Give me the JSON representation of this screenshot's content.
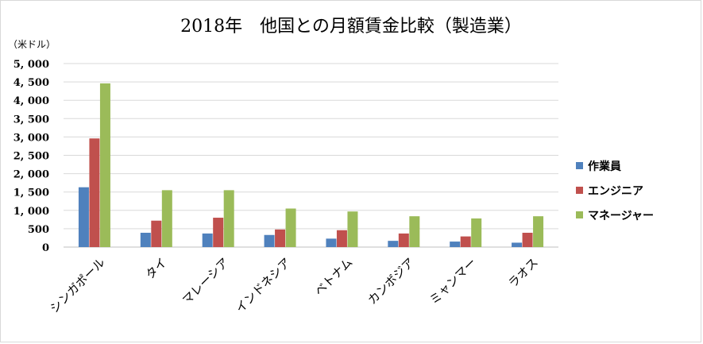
{
  "chart_data": {
    "type": "bar",
    "title": "2018年　他国との月額賃金比較（製造業）",
    "ylabel": "（米ドル）",
    "xlabel": "",
    "ylim": [
      0,
      5000
    ],
    "yticks": [
      "0",
      "500",
      "1, 000",
      "1, 500",
      "2, 000",
      "2, 500",
      "3, 000",
      "3, 500",
      "4, 000",
      "4, 500",
      "5, 000"
    ],
    "categories": [
      "シンガポール",
      "タイ",
      "マレーシア",
      "インドネシア",
      "ベトナム",
      "カンボジア",
      "ミャンマー",
      "ラオス"
    ],
    "series": [
      {
        "name": "作業員",
        "color": "#4f81bd",
        "values": [
          1630,
          390,
          370,
          330,
          230,
          170,
          150,
          120
        ]
      },
      {
        "name": "エンジニア",
        "color": "#c0504d",
        "values": [
          2960,
          720,
          800,
          480,
          460,
          370,
          290,
          390
        ]
      },
      {
        "name": "マネージャー",
        "color": "#9bbb59",
        "values": [
          4460,
          1550,
          1550,
          1050,
          970,
          840,
          780,
          840
        ]
      }
    ],
    "grid": true,
    "legend_position": "right"
  }
}
